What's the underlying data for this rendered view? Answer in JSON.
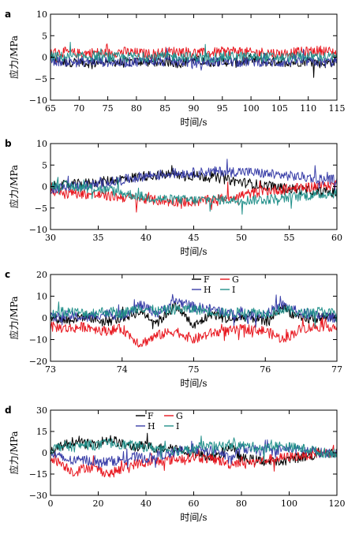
{
  "chart_data": [
    {
      "panel": "a",
      "type": "line",
      "xlabel": "时间/s",
      "ylabel": "应力/MPa",
      "xlim": [
        65,
        115
      ],
      "ylim": [
        -10,
        10
      ],
      "xticks": [
        65,
        70,
        75,
        80,
        85,
        90,
        95,
        100,
        105,
        110,
        115
      ],
      "yticks": [
        -10,
        -5,
        0,
        5,
        10
      ],
      "x": [
        65,
        67.5,
        70,
        72.5,
        75,
        77.5,
        80,
        82.5,
        85,
        87.5,
        90,
        92.5,
        95,
        97.5,
        100,
        102.5,
        105,
        107.5,
        110,
        112.5,
        115
      ],
      "series": [
        {
          "name": "F",
          "color": "#000000",
          "values": [
            -0.5,
            -1.2,
            -1.0,
            -1.5,
            -0.8,
            -1.3,
            -0.9,
            -1.1,
            -1.0,
            -1.4,
            -0.6,
            -1.2,
            -0.9,
            -1.3,
            -0.7,
            -1.1,
            -1.0,
            -1.2,
            -0.8,
            -1.5,
            -1.0
          ]
        },
        {
          "name": "G",
          "color": "#e8171f",
          "values": [
            1.0,
            1.2,
            0.8,
            1.1,
            0.9,
            1.3,
            1.0,
            0.7,
            1.2,
            1.4,
            1.1,
            0.9,
            1.3,
            1.5,
            1.0,
            1.2,
            0.8,
            1.1,
            1.3,
            1.6,
            1.0
          ]
        },
        {
          "name": "H",
          "color": "#3a3fa8",
          "values": [
            -0.8,
            -1.0,
            -1.2,
            -0.9,
            -1.1,
            -1.3,
            -1.0,
            -0.8,
            -1.2,
            -1.0,
            -1.3,
            -1.1,
            -0.9,
            -1.2,
            -1.0,
            -1.1,
            -1.3,
            -0.9,
            -1.0,
            -1.2,
            -1.0
          ]
        },
        {
          "name": "I",
          "color": "#22908a",
          "values": [
            0.2,
            0.1,
            0.0,
            0.3,
            0.1,
            -0.1,
            0.2,
            0.0,
            0.1,
            0.2,
            0.0,
            -0.1,
            0.1,
            0.2,
            0.0,
            0.1,
            -0.1,
            0.0,
            0.2,
            0.1,
            0.0
          ]
        }
      ]
    },
    {
      "panel": "b",
      "type": "line",
      "xlabel": "时间/s",
      "ylabel": "应力/MPa",
      "xlim": [
        30,
        60
      ],
      "ylim": [
        -10,
        10
      ],
      "xticks": [
        30,
        35,
        40,
        45,
        50,
        55,
        60
      ],
      "yticks": [
        -10,
        -5,
        0,
        5,
        10
      ],
      "x": [
        30,
        32.5,
        35,
        37.5,
        40,
        42.5,
        45,
        47.5,
        50,
        52.5,
        55,
        57.5,
        60
      ],
      "series": [
        {
          "name": "F",
          "color": "#000000",
          "values": [
            0.0,
            0.5,
            1.0,
            1.8,
            2.5,
            2.8,
            2.5,
            2.0,
            1.0,
            0.2,
            -0.5,
            -1.0,
            -1.5
          ]
        },
        {
          "name": "G",
          "color": "#e8171f",
          "values": [
            -1.0,
            -1.5,
            -2.0,
            -2.5,
            -3.0,
            -3.5,
            -3.5,
            -3.0,
            -2.0,
            -1.0,
            -0.5,
            0.0,
            0.5
          ]
        },
        {
          "name": "H",
          "color": "#3a3fa8",
          "values": [
            -0.5,
            0.0,
            0.5,
            1.5,
            2.5,
            3.0,
            3.2,
            3.5,
            3.5,
            3.0,
            2.5,
            2.0,
            1.5
          ]
        },
        {
          "name": "I",
          "color": "#22908a",
          "values": [
            0.5,
            0.0,
            -0.5,
            -1.5,
            -2.5,
            -3.0,
            -3.2,
            -3.0,
            -3.2,
            -3.0,
            -2.5,
            -2.0,
            -1.5
          ]
        }
      ]
    },
    {
      "panel": "c",
      "type": "line",
      "xlabel": "时间/s",
      "ylabel": "应力/MPa",
      "xlim": [
        73,
        77
      ],
      "ylim": [
        -20,
        20
      ],
      "xticks": [
        73,
        74,
        75,
        76,
        77
      ],
      "yticks": [
        -20,
        -10,
        0,
        10,
        20
      ],
      "legend": [
        "F",
        "G",
        "H",
        "I"
      ],
      "x": [
        73,
        73.25,
        73.5,
        73.75,
        74,
        74.25,
        74.5,
        74.75,
        75,
        75.25,
        75.5,
        75.75,
        76,
        76.25,
        76.5,
        76.75,
        77
      ],
      "series": [
        {
          "name": "F",
          "color": "#000000",
          "values": [
            0,
            -1,
            1,
            -2,
            0,
            3,
            -2,
            6,
            -4,
            2,
            -1,
            1,
            -2,
            5,
            -1,
            0,
            1
          ]
        },
        {
          "name": "G",
          "color": "#e8171f",
          "values": [
            -4,
            -5,
            -4,
            -6,
            -5,
            -12,
            -8,
            -6,
            -10,
            -7,
            -6,
            -5,
            -6,
            -10,
            -5,
            -4,
            -4
          ]
        },
        {
          "name": "H",
          "color": "#3a3fa8",
          "values": [
            0,
            1,
            0,
            2,
            1,
            6,
            2,
            8,
            5,
            4,
            2,
            1,
            2,
            6,
            2,
            1,
            0
          ]
        },
        {
          "name": "I",
          "color": "#22908a",
          "values": [
            2,
            3,
            2,
            3,
            2,
            5,
            3,
            4,
            4,
            3,
            2,
            3,
            2,
            4,
            2,
            3,
            2
          ]
        }
      ]
    },
    {
      "panel": "d",
      "type": "line",
      "xlabel": "时间/s",
      "ylabel": "应力/MPa",
      "xlim": [
        0,
        120
      ],
      "ylim": [
        -30,
        30
      ],
      "xticks": [
        0,
        20,
        40,
        60,
        80,
        100,
        120
      ],
      "yticks": [
        -30,
        -15,
        0,
        15,
        30
      ],
      "legend": [
        "F",
        "G",
        "H",
        "I"
      ],
      "x": [
        0,
        5,
        10,
        15,
        20,
        25,
        30,
        35,
        40,
        45,
        50,
        55,
        60,
        65,
        70,
        75,
        80,
        85,
        90,
        95,
        100,
        105,
        110,
        112
      ],
      "series": [
        {
          "name": "F",
          "color": "#000000",
          "values": [
            0,
            5,
            8,
            6,
            7,
            10,
            6,
            4,
            5,
            3,
            4,
            2,
            0,
            -2,
            -3,
            5,
            -4,
            -5,
            -6,
            -7,
            -5,
            -3,
            -2,
            0
          ]
        },
        {
          "name": "G",
          "color": "#e8171f",
          "values": [
            -3,
            -8,
            -14,
            -10,
            -12,
            -15,
            -11,
            -8,
            -7,
            -6,
            -5,
            -4,
            -3,
            -4,
            -5,
            -8,
            -6,
            -7,
            -5,
            -4,
            -3,
            -2,
            -1,
            0
          ]
        },
        {
          "name": "H",
          "color": "#3a3fa8",
          "values": [
            0,
            -4,
            -6,
            -5,
            -7,
            -6,
            -5,
            -3,
            -4,
            -2,
            -1,
            2,
            3,
            1,
            2,
            -5,
            3,
            2,
            1,
            2,
            3,
            2,
            1,
            0
          ]
        },
        {
          "name": "I",
          "color": "#22908a",
          "values": [
            2,
            5,
            4,
            6,
            5,
            7,
            6,
            5,
            4,
            3,
            2,
            1,
            3,
            5,
            4,
            6,
            5,
            4,
            3,
            5,
            4,
            3,
            2,
            0
          ]
        }
      ]
    }
  ]
}
